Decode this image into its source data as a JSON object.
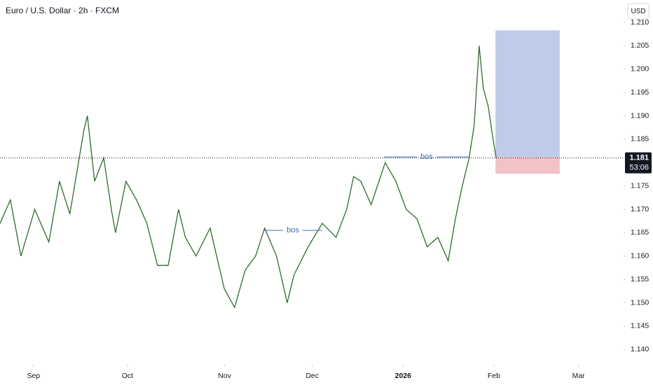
{
  "chart_data": {
    "type": "line",
    "title": "Euro / U.S. Dollar · 2h · FXCM",
    "currency_button": "USD",
    "series": [
      {
        "name": "EUR/USD",
        "color": "#2f6b2f",
        "x": [
          -10.7,
          -7.4,
          -4.0,
          0.4,
          4.9,
          8.3,
          11.6,
          16.1,
          17.2,
          19.5,
          22.4,
          25.1,
          26.2,
          29.5,
          32.9,
          36.2,
          39.6,
          43.0,
          46.3,
          48.5,
          51.9,
          56.4,
          60.9,
          64.2,
          67.6,
          70.9,
          73.8,
          77.6,
          81.0,
          83.2,
          87.7,
          92.2,
          96.6,
          100.0,
          102.2,
          104.5,
          107.8,
          112.3,
          115.7,
          119.0,
          122.4,
          125.7,
          129.1,
          132.4,
          134.7,
          136.9,
          139.1,
          140.7,
          142.3,
          143.6,
          145.2,
          146.5,
          147.7
        ],
        "values": [
          1.167,
          1.172,
          1.16,
          1.17,
          1.163,
          1.176,
          1.169,
          1.187,
          1.19,
          1.176,
          1.181,
          1.169,
          1.165,
          1.176,
          1.172,
          1.167,
          1.158,
          1.158,
          1.17,
          1.164,
          1.16,
          1.166,
          1.153,
          1.149,
          1.157,
          1.16,
          1.166,
          1.16,
          1.15,
          1.156,
          1.162,
          1.167,
          1.164,
          1.17,
          1.177,
          1.176,
          1.171,
          1.18,
          1.176,
          1.17,
          1.168,
          1.162,
          1.164,
          1.159,
          1.168,
          1.175,
          1.181,
          1.188,
          1.205,
          1.196,
          1.192,
          1.186,
          1.181
        ]
      }
    ],
    "xlim": [
      -10.7,
      188.4
    ],
    "xticks": [
      {
        "value": 0,
        "label": "Sep"
      },
      {
        "value": 30,
        "label": "Oct"
      },
      {
        "value": 61,
        "label": "Nov"
      },
      {
        "value": 89,
        "label": "Dec"
      },
      {
        "value": 118,
        "label": "2026"
      },
      {
        "value": 147,
        "label": "Feb"
      },
      {
        "value": 174,
        "label": "Mar"
      }
    ],
    "ylim": [
      1.1369,
      1.2148
    ],
    "yticks": [
      {
        "value": 1.21,
        "label": "1.210"
      },
      1.205,
      {
        "value": 1.2,
        "label": "1.200"
      },
      1.195,
      {
        "value": 1.19,
        "label": "1.190"
      },
      1.185,
      1.175,
      {
        "value": 1.17,
        "label": "1.170"
      },
      1.165,
      {
        "value": 1.16,
        "label": "1.160"
      },
      1.155,
      {
        "value": 1.15,
        "label": "1.150"
      },
      1.145,
      {
        "value": 1.14,
        "label": "1.140"
      }
    ],
    "last_price": 1.181,
    "countdown": "53:06",
    "annotations": [
      {
        "text": "bos",
        "y": 1.1655,
        "x": [
          73.4,
          92.2
        ]
      },
      {
        "text": "bos",
        "y": 1.1812,
        "x": [
          111.9,
          139.1
        ]
      }
    ],
    "position": {
      "start": 147.5,
      "end": 168,
      "entry": 1.1812,
      "target": 1.2083,
      "stop": 1.1776,
      "target_color": "#a9bbe0",
      "stop_color": "#efb3b8"
    }
  }
}
